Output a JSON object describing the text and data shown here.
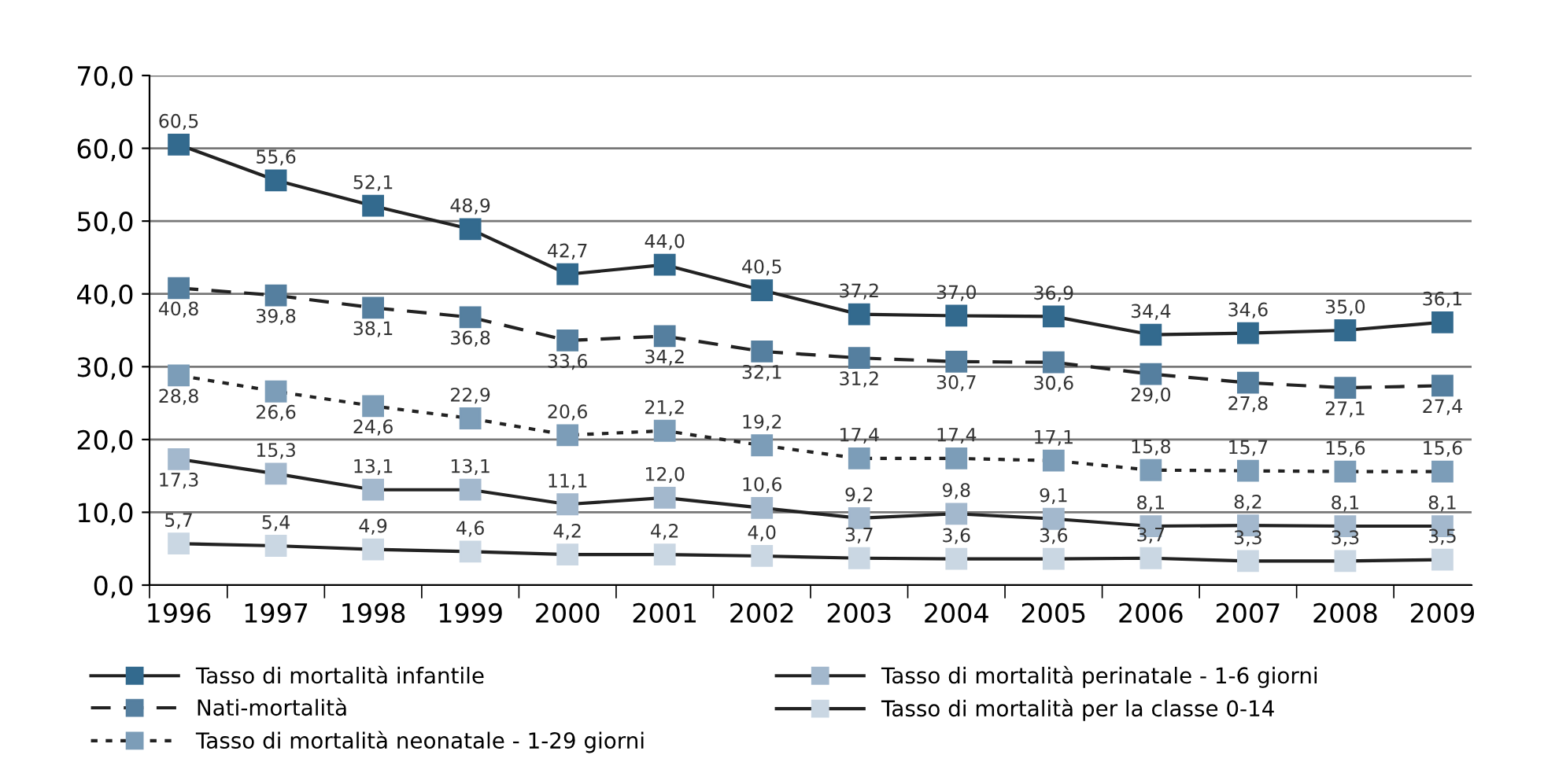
{
  "chart_data": {
    "type": "line",
    "categories": [
      "1996",
      "1997",
      "1998",
      "1999",
      "2000",
      "2001",
      "2002",
      "2003",
      "2004",
      "2005",
      "2006",
      "2007",
      "2008",
      "2009"
    ],
    "ylim": [
      0,
      70
    ],
    "yticks": [
      {
        "value": 0,
        "label": "0,0"
      },
      {
        "value": 10,
        "label": "10,0"
      },
      {
        "value": 20,
        "label": "20,0"
      },
      {
        "value": 30,
        "label": "30,0"
      },
      {
        "value": 40,
        "label": "40,0"
      },
      {
        "value": 50,
        "label": "50,0"
      },
      {
        "value": 60,
        "label": "60,0"
      },
      {
        "value": 70,
        "label": "70,0"
      }
    ],
    "grid": "y",
    "legend": "bottom",
    "marker": "square",
    "series": [
      {
        "name": "Tasso di mortalità infantile",
        "color": "#336a8e",
        "line_style": "solid",
        "values": [
          60.5,
          55.6,
          52.1,
          48.9,
          42.7,
          44.0,
          40.5,
          37.2,
          37.0,
          36.9,
          34.4,
          34.6,
          35.0,
          36.1
        ],
        "value_labels": [
          "60,5",
          "55,6",
          "52,1",
          "48,9",
          "42,7",
          "44,0",
          "40,5",
          "37,2",
          "37,0",
          "36,9",
          "34,4",
          "34,6",
          "35,0",
          "36,1"
        ]
      },
      {
        "name": "Nati-mortalità",
        "color": "#557f9f",
        "line_style": "dashed",
        "values": [
          40.8,
          39.8,
          38.1,
          36.8,
          33.6,
          34.2,
          32.1,
          31.2,
          30.7,
          30.6,
          29.0,
          27.8,
          27.1,
          27.4
        ],
        "value_labels": [
          "40,8",
          "39,8",
          "38,1",
          "36,8",
          "33,6",
          "34,2",
          "32,1",
          "31,2",
          "30,7",
          "30,6",
          "29,0",
          "27,8",
          "27,1",
          "27,4"
        ]
      },
      {
        "name": "Tasso di mortalità neonatale - 1-29 giorni",
        "color": "#7c9db8",
        "line_style": "dotted",
        "values": [
          28.8,
          26.6,
          24.6,
          22.9,
          20.6,
          21.2,
          19.2,
          17.4,
          17.4,
          17.1,
          15.8,
          15.7,
          15.6,
          15.6
        ],
        "value_labels": [
          "28,8",
          "26,6",
          "24,6",
          "22,9",
          "20,6",
          "21,2",
          "19,2",
          "17,4",
          "17,4",
          "17,1",
          "15,8",
          "15,7",
          "15,6",
          "15,6"
        ]
      },
      {
        "name": "Tasso di mortalità perinatale - 1-6 giorni",
        "color": "#a3b8cd",
        "line_style": "solid",
        "values": [
          17.3,
          15.3,
          13.1,
          13.1,
          11.1,
          12.0,
          10.6,
          9.2,
          9.8,
          9.1,
          8.1,
          8.2,
          8.1,
          8.1
        ],
        "value_labels": [
          "17,3",
          "15,3",
          "13,1",
          "13,1",
          "11,1",
          "12,0",
          "10,6",
          "9,2",
          "9,8",
          "9,1",
          "8,1",
          "8,2",
          "8,1",
          "8,1"
        ]
      },
      {
        "name": "Tasso di mortalità per la classe 0-14",
        "color": "#cad7e3",
        "line_style": "solid",
        "values": [
          5.7,
          5.4,
          4.9,
          4.6,
          4.2,
          4.2,
          4.0,
          3.7,
          3.6,
          3.6,
          3.7,
          3.3,
          3.3,
          3.5
        ],
        "value_labels": [
          "5,7",
          "5,4",
          "4,9",
          "4,6",
          "4,2",
          "4,2",
          "4,0",
          "3,7",
          "3,6",
          "3,6",
          "3,7",
          "3,3",
          "3,3",
          "3,5"
        ]
      }
    ]
  }
}
